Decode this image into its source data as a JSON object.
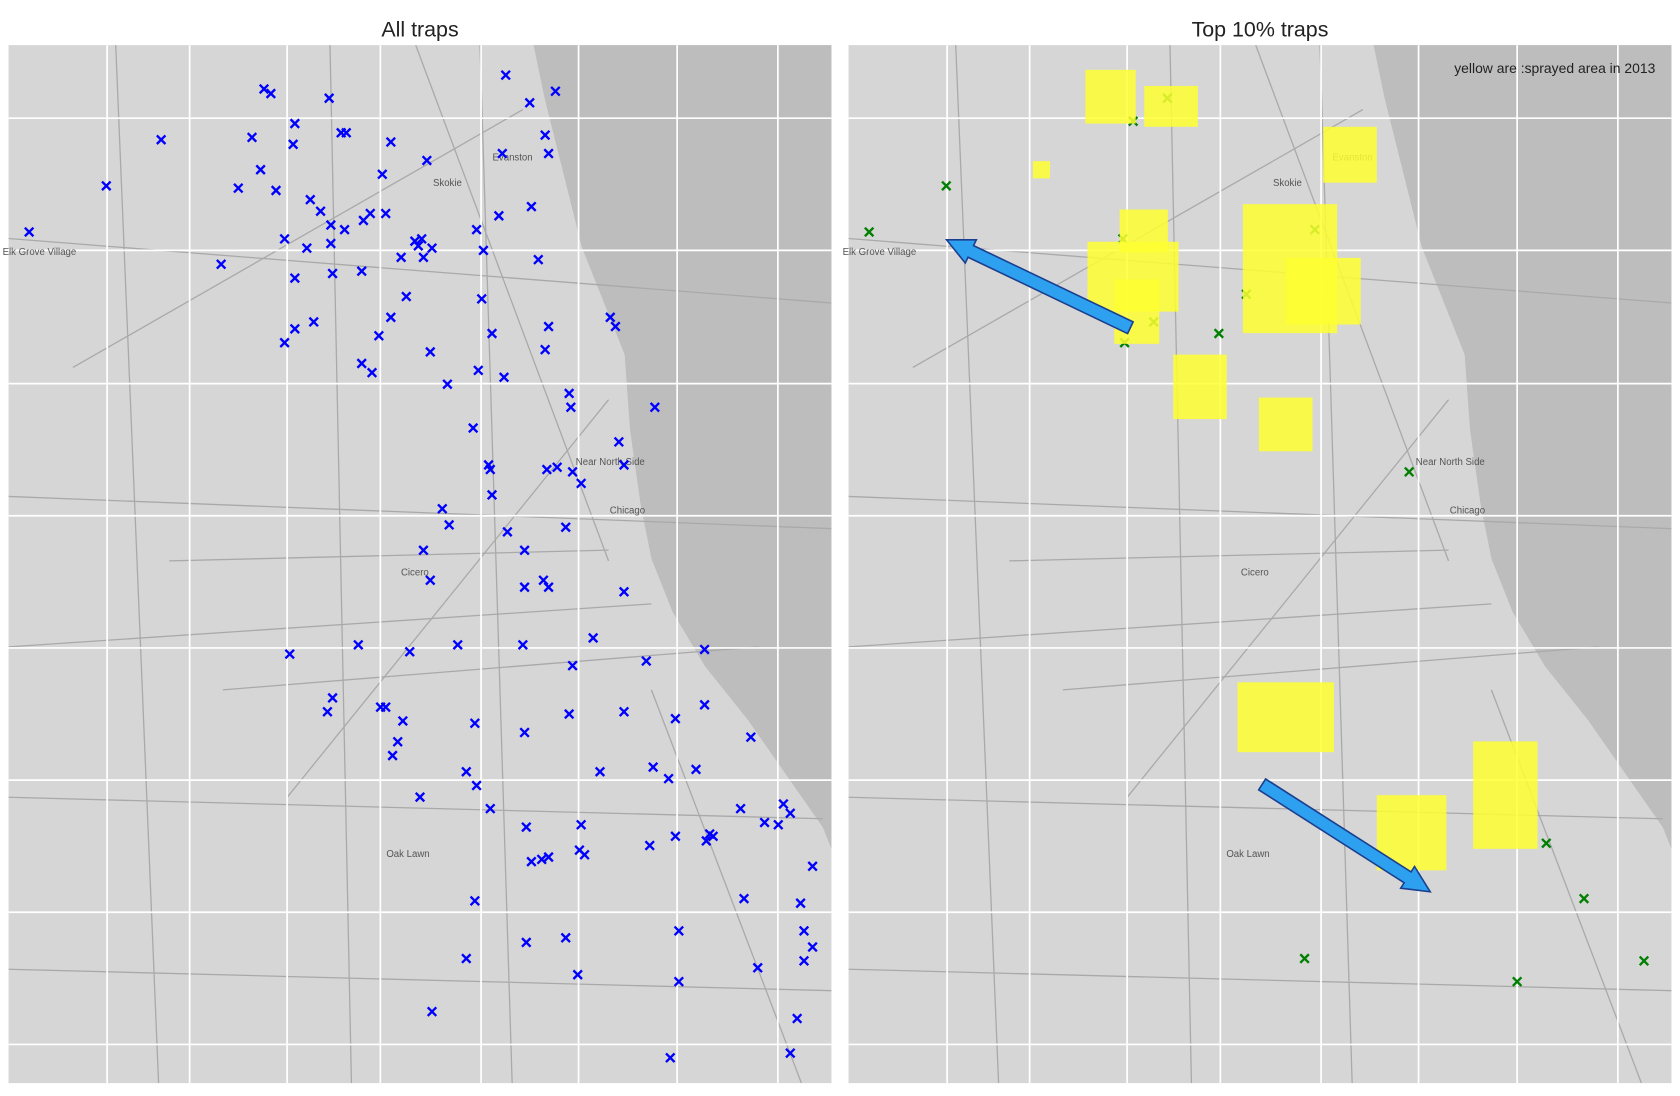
{
  "chart_data": [
    {
      "type": "scatter",
      "title": "All traps",
      "marker": "x",
      "color": "#0000ff",
      "xlim": [
        -87.99,
        -87.51
      ],
      "ylim": [
        41.635,
        42.085
      ],
      "x": [
        -87.978,
        -87.933,
        -87.901,
        -87.866,
        -87.856,
        -87.843,
        -87.834,
        -87.841,
        -87.837,
        -87.848,
        -87.824,
        -87.823,
        -87.803,
        -87.796,
        -87.793,
        -87.767,
        -87.746,
        -87.772,
        -87.814,
        -87.808,
        -87.802,
        -87.829,
        -87.816,
        -87.802,
        -87.794,
        -87.783,
        -87.779,
        -87.77,
        -87.784,
        -87.801,
        -87.823,
        -87.823,
        -87.812,
        -87.829,
        -87.767,
        -87.774,
        -87.784,
        -87.778,
        -87.758,
        -87.761,
        -87.753,
        -87.749,
        -87.748,
        -87.743,
        -87.751,
        -87.717,
        -87.704,
        -87.713,
        -87.714,
        -87.708,
        -87.744,
        -87.734,
        -87.716,
        -87.701,
        -87.685,
        -87.681,
        -87.675,
        -87.677,
        -87.702,
        -87.7,
        -87.686,
        -87.671,
        -87.677,
        -87.675,
        -87.639,
        -87.636,
        -87.663,
        -87.662,
        -87.613,
        -87.719,
        -87.71,
        -87.709,
        -87.708,
        -87.676,
        -87.67,
        -87.661,
        -87.656,
        -87.634,
        -87.631,
        -87.737,
        -87.733,
        -87.699,
        -87.665,
        -87.748,
        -87.689,
        -87.744,
        -87.689,
        -87.678,
        -87.675,
        -87.631,
        -87.649,
        -87.69,
        -87.728,
        -87.756,
        -87.786,
        -87.826,
        -87.584,
        -87.618,
        -87.661,
        -87.801,
        -87.804,
        -87.773,
        -87.77,
        -87.76,
        -87.718,
        -87.689,
        -87.663,
        -87.631,
        -87.601,
        -87.584,
        -87.557,
        -87.763,
        -87.766,
        -87.723,
        -87.717,
        -87.645,
        -87.614,
        -87.605,
        -87.589,
        -87.75,
        -87.709,
        -87.688,
        -87.656,
        -87.601,
        -87.581,
        -87.583,
        -87.579,
        -87.563,
        -87.549,
        -87.538,
        -87.534,
        -87.541,
        -87.657,
        -87.654,
        -87.685,
        -87.679,
        -87.675,
        -87.616,
        -87.521,
        -87.561,
        -87.528,
        -87.718,
        -87.599,
        -87.526,
        -87.665,
        -87.688,
        -87.723,
        -87.658,
        -87.521,
        -87.526,
        -87.553,
        -87.599,
        -87.743,
        -87.53,
        -87.534,
        -87.604
      ],
      "values": [
        42.004,
        42.024,
        42.044,
        41.99,
        42.023,
        42.031,
        42.022,
        42.066,
        42.064,
        42.045,
        42.042,
        42.051,
        42.062,
        42.047,
        42.047,
        42.043,
        42.035,
        42.029,
        42.018,
        42.013,
        42.007,
        42.001,
        41.997,
        41.999,
        42.005,
        42.009,
        42.012,
        42.012,
        41.987,
        41.986,
        41.984,
        41.962,
        41.965,
        41.956,
        41.967,
        41.959,
        41.947,
        41.943,
        41.976,
        41.993,
        42.0,
        42.001,
        41.993,
        41.997,
        41.998,
        42.005,
        42.011,
        41.996,
        41.975,
        41.96,
        41.952,
        41.938,
        41.944,
        41.941,
        42.015,
        41.992,
        41.963,
        41.953,
        42.038,
        42.072,
        42.06,
        42.065,
        42.046,
        42.038,
        41.967,
        41.963,
        41.934,
        41.928,
        41.928,
        41.919,
        41.903,
        41.901,
        41.89,
        41.901,
        41.902,
        41.9,
        41.895,
        41.913,
        41.903,
        41.884,
        41.877,
        41.874,
        41.876,
        41.866,
        41.866,
        41.853,
        41.85,
        41.853,
        41.85,
        41.848,
        41.828,
        41.825,
        41.825,
        41.822,
        41.825,
        41.821,
        41.823,
        41.818,
        41.816,
        41.802,
        41.796,
        41.798,
        41.798,
        41.792,
        41.791,
        41.787,
        41.795,
        41.796,
        41.793,
        41.799,
        41.785,
        41.783,
        41.777,
        41.77,
        41.764,
        41.77,
        41.772,
        41.767,
        41.771,
        41.759,
        41.754,
        41.746,
        41.747,
        41.742,
        41.743,
        41.74,
        41.742,
        41.754,
        41.748,
        41.756,
        41.752,
        41.747,
        41.736,
        41.734,
        41.731,
        41.732,
        41.733,
        41.738,
        41.729,
        41.715,
        41.713,
        41.714,
        41.701,
        41.701,
        41.698,
        41.696,
        41.689,
        41.682,
        41.694,
        41.688,
        41.685,
        41.679,
        41.666,
        41.663,
        41.648,
        41.646
      ]
    },
    {
      "type": "scatter",
      "title": "Top 10% traps",
      "annotation": "yellow are :sprayed area in 2013",
      "marker": "x",
      "color": "#008000",
      "xlim": [
        -87.99,
        -87.51
      ],
      "ylim": [
        41.635,
        42.085
      ],
      "x": [
        -87.978,
        -87.933,
        -87.804,
        -87.824,
        -87.83,
        -87.718,
        -87.758,
        -87.812,
        -87.774,
        -87.829,
        -87.663,
        -87.583,
        -87.561,
        -87.724,
        -87.6,
        -87.526
      ],
      "values": [
        42.004,
        42.024,
        42.062,
        42.052,
        42.001,
        42.005,
        41.977,
        41.965,
        41.96,
        41.956,
        41.9,
        41.739,
        41.715,
        41.689,
        41.679,
        41.688
      ]
    }
  ],
  "map_labels": [
    {
      "text": "Evanston",
      "x": -87.696,
      "y": 42.035
    },
    {
      "text": "Skokie",
      "x": -87.734,
      "y": 42.024
    },
    {
      "text": "Elk Grove Village",
      "x": -87.972,
      "y": 41.994
    },
    {
      "text": "Near North Side",
      "x": -87.639,
      "y": 41.903
    },
    {
      "text": "Chicago",
      "x": -87.629,
      "y": 41.882
    },
    {
      "text": "Cicero",
      "x": -87.753,
      "y": 41.855
    },
    {
      "text": "Oak Lawn",
      "x": -87.757,
      "y": 41.733
    }
  ]
}
